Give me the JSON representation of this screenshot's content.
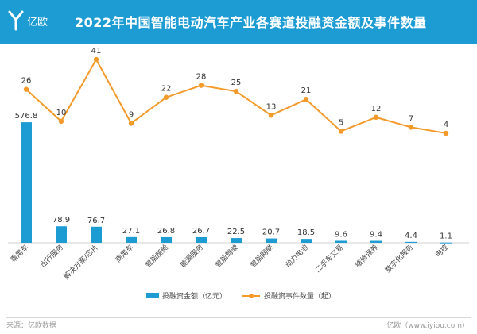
{
  "header": {
    "logo_text": "亿欧",
    "title": "2022年中国智能电动汽车产业各赛道投融资金额及事件数量"
  },
  "footer": {
    "source": "来源：亿欧数据",
    "brand": "亿欧（www.iyiou.com）"
  },
  "colors": {
    "header_bg": "#1d9cd4",
    "bar": "#1d9cd4",
    "line": "#f39a2b"
  },
  "chart_data": {
    "type": "bar",
    "categories": [
      "乘用车",
      "出行服务",
      "解决方案/芯片",
      "商用车",
      "智能座舱",
      "能源服务",
      "智能驾驶",
      "智能网联",
      "动力电池",
      "二手车交易",
      "维修保养",
      "数字化服务",
      "电控"
    ],
    "series": [
      {
        "name": "投融资金额（亿元）",
        "type": "bar",
        "values": [
          576.8,
          78.9,
          76.7,
          27.1,
          26.8,
          26.7,
          22.5,
          20.7,
          18.5,
          9.6,
          9.4,
          4.4,
          1.1
        ]
      },
      {
        "name": "投融资事件数量（起）",
        "type": "line",
        "values": [
          26,
          10,
          41,
          9,
          22,
          28,
          25,
          13,
          21,
          5,
          12,
          7,
          4
        ]
      }
    ],
    "bar_value_labels": [
      "576.8",
      "78.9",
      "76.7",
      "27.1",
      "26.8",
      "26.7",
      "22.5",
      "20.7",
      "18.5",
      "9.6",
      "9.4",
      "4.4",
      "1.1"
    ],
    "line_value_labels": [
      "26",
      "10",
      "41",
      "9",
      "22",
      "28",
      "25",
      "13",
      "21",
      "5",
      "12",
      "7",
      "4"
    ],
    "grid": false,
    "legend_position": "bottom"
  }
}
